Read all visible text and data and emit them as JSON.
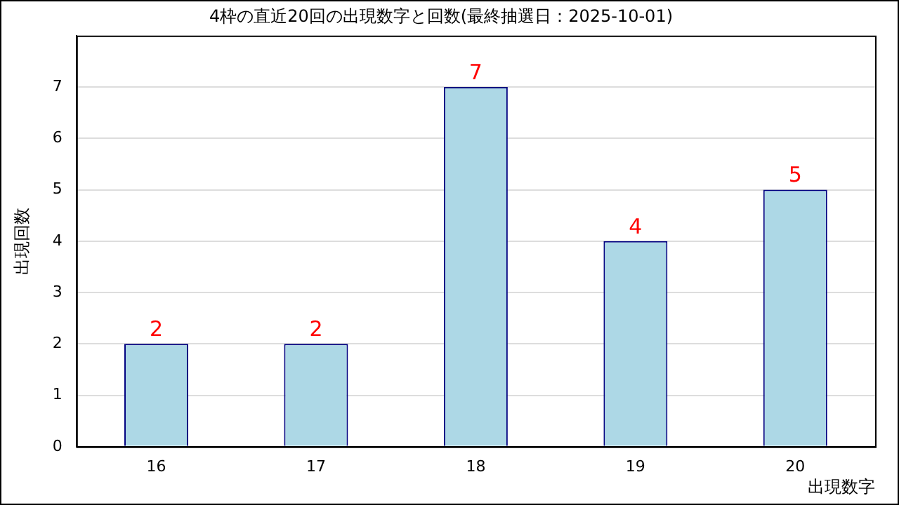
{
  "chart_data": {
    "type": "bar",
    "title": "4枠の直近20回の出現数字と回数(最終抽選日：2025-10-01)",
    "xlabel": "出現数字",
    "ylabel": "出現回数",
    "categories": [
      "16",
      "17",
      "18",
      "19",
      "20"
    ],
    "values": [
      2,
      2,
      7,
      4,
      5
    ],
    "color": "#add8e6",
    "ylim": [
      0,
      8
    ],
    "yticks": [
      0,
      1,
      2,
      3,
      4,
      5,
      6,
      7
    ],
    "grid": "y",
    "data_labels": true,
    "legend": false
  }
}
